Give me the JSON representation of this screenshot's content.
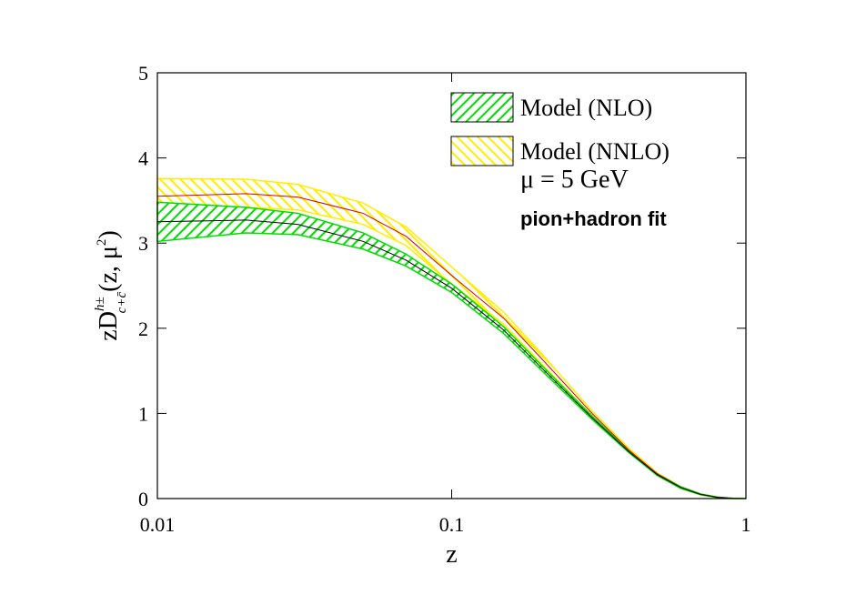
{
  "chart_data": {
    "type": "band-line",
    "x_label": "z",
    "y_label": {
      "main": "zD",
      "sup": "h±",
      "sub": "c+c̄",
      "args": "(z, μ",
      "args_sup": "2",
      "close": ")"
    },
    "annotations": [
      "μ = 5 GeV",
      "pion+hadron fit"
    ],
    "x": [
      0.01,
      0.02,
      0.03,
      0.05,
      0.07,
      0.1,
      0.15,
      0.2,
      0.3,
      0.4,
      0.5,
      0.6,
      0.7,
      0.8,
      0.9,
      1
    ],
    "series": [
      {
        "name": "Model (NLO)",
        "color": "#00dd00",
        "line_color": "#000000",
        "hatch": "forward",
        "values": [
          3.25,
          3.27,
          3.22,
          3.02,
          2.8,
          2.47,
          1.98,
          1.55,
          0.95,
          0.55,
          0.28,
          0.13,
          0.05,
          0.015,
          0.003,
          0
        ],
        "upper": [
          3.48,
          3.42,
          3.35,
          3.12,
          2.87,
          2.52,
          2.02,
          1.58,
          0.97,
          0.56,
          0.29,
          0.14,
          0.055,
          0.018,
          0.004,
          0
        ],
        "lower": [
          3.02,
          3.12,
          3.1,
          2.93,
          2.73,
          2.42,
          1.94,
          1.52,
          0.93,
          0.54,
          0.27,
          0.12,
          0.045,
          0.012,
          0.002,
          0
        ]
      },
      {
        "name": "Model (NNLO)",
        "color": "#ffee00",
        "line_color": "#dd0000",
        "hatch": "backward",
        "values": [
          3.55,
          3.58,
          3.54,
          3.35,
          3.08,
          2.62,
          2.12,
          1.66,
          1.0,
          0.57,
          0.29,
          0.13,
          0.05,
          0.013,
          0.002,
          0
        ],
        "upper": [
          3.76,
          3.75,
          3.69,
          3.47,
          3.19,
          2.72,
          2.19,
          1.72,
          1.03,
          0.59,
          0.3,
          0.14,
          0.055,
          0.016,
          0.003,
          0
        ],
        "lower": [
          3.33,
          3.42,
          3.39,
          3.22,
          2.97,
          2.52,
          2.05,
          1.6,
          0.97,
          0.55,
          0.28,
          0.12,
          0.045,
          0.01,
          0.001,
          0
        ]
      }
    ],
    "x_log": true,
    "xlim": [
      0.01,
      1
    ],
    "xticks": [
      0.01,
      0.1,
      1
    ],
    "ylim": [
      0,
      5
    ],
    "yticks": [
      0,
      1,
      2,
      3,
      4,
      5
    ],
    "legend": "upper right"
  }
}
